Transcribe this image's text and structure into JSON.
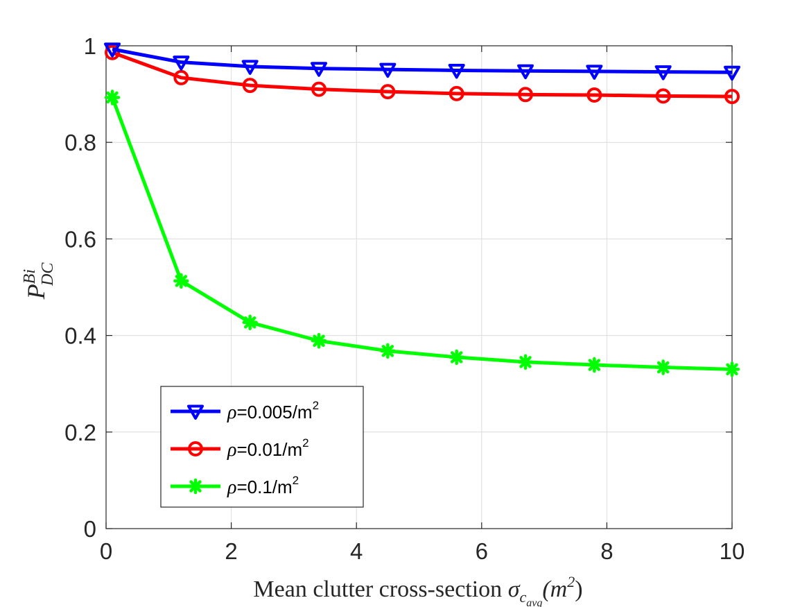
{
  "chart_data": {
    "type": "line",
    "title": "",
    "xlabel": {
      "text": "Mean clutter cross-section ",
      "symbol": "σ",
      "symbol_sub": "c",
      "symbol_subsub": "avg",
      "unit": "(m",
      "unit_sup": "2",
      "unit_close": ")"
    },
    "ylabel": {
      "base": "P",
      "sup": "Bi",
      "sub": "DC"
    },
    "xlim": [
      0,
      10
    ],
    "ylim": [
      0,
      1
    ],
    "xticks": [
      0,
      2,
      4,
      6,
      8,
      10
    ],
    "yticks": [
      0,
      0.2,
      0.4,
      0.6,
      0.8,
      1
    ],
    "grid": true,
    "legend_position": "lower-left",
    "x": [
      0.1,
      1.2,
      2.3,
      3.4,
      4.5,
      5.6,
      6.7,
      7.8,
      8.9,
      10
    ],
    "series": [
      {
        "name": "ρ=0.005/m2",
        "label_symbol": "ρ",
        "label_text": "=0.005/m",
        "label_sup": "2",
        "color": "#0000ff",
        "marker": "triangle-down",
        "values": [
          0.993,
          0.966,
          0.957,
          0.953,
          0.951,
          0.949,
          0.948,
          0.947,
          0.946,
          0.945
        ]
      },
      {
        "name": "ρ=0.01/m2",
        "label_symbol": "ρ",
        "label_text": "=0.01/m",
        "label_sup": "2",
        "color": "#ff0000",
        "marker": "circle",
        "values": [
          0.986,
          0.934,
          0.918,
          0.91,
          0.905,
          0.901,
          0.899,
          0.898,
          0.896,
          0.895
        ]
      },
      {
        "name": "ρ=0.1/m2",
        "label_symbol": "ρ",
        "label_text": "=0.1/m",
        "label_sup": "2",
        "color": "#00ff00",
        "marker": "asterisk",
        "values": [
          0.893,
          0.513,
          0.427,
          0.389,
          0.368,
          0.355,
          0.345,
          0.339,
          0.334,
          0.33
        ]
      }
    ]
  }
}
